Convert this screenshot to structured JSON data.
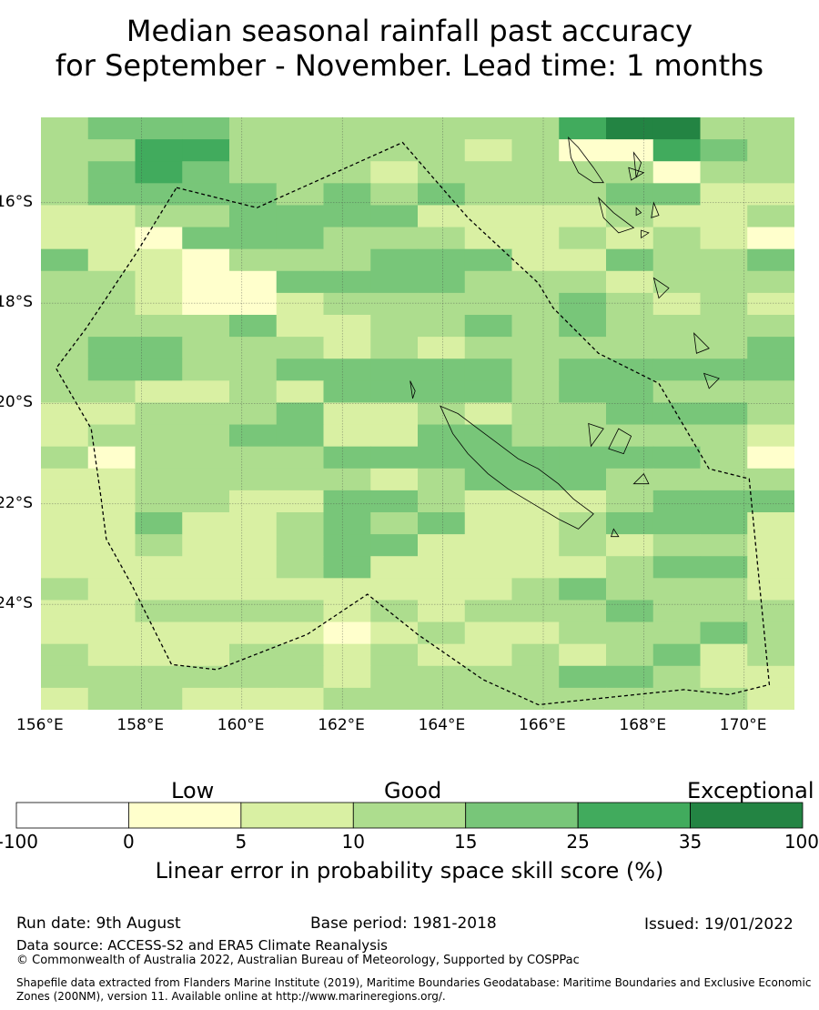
{
  "title_line1": "Median seasonal rainfall past accuracy",
  "title_line2": "for September - November. Lead time: 1 months",
  "map": {
    "lon_range": [
      156,
      171
    ],
    "lat_range": [
      -14.3,
      -26.1
    ],
    "lon_ticks": [
      156,
      158,
      160,
      162,
      164,
      166,
      168,
      170
    ],
    "lon_tick_labels": [
      "156°E",
      "158°E",
      "160°E",
      "162°E",
      "164°E",
      "166°E",
      "168°E",
      "170°E"
    ],
    "lat_ticks": [
      -16,
      -18,
      -20,
      -22,
      -24
    ],
    "lat_tick_labels": [
      "16°S",
      "18°S",
      "20°S",
      "22°S",
      "24°S"
    ],
    "grid": true,
    "skill_grid_class_rows": [
      "3444333333356633",
      "3355333332311543",
      "3454333233333133",
      "3444434343334422",
      "2233444422223223",
      "2214443332232321",
      "4221333444224334",
      "3321144443332333",
      "3321123333343232",
      "3333422334343333",
      "3443332323333334",
      "3443344444344444",
      "3322324444344333",
      "2233342232334443",
      "2333442244333332",
      "3133334444444431",
      "2233333234443333",
      "2233224432223444",
      "2242234342234442",
      "2232234422232332",
      "2222234222223442",
      "3222222222343332",
      "2233332323334333",
      "2222221232233343",
      "3222332322323423",
      "3333332333344322",
      "2332223333333332"
    ],
    "boundary_zone": [
      [
        158.7,
        -15.7
      ],
      [
        160.3,
        -16.1
      ],
      [
        163.2,
        -14.8
      ],
      [
        164.5,
        -16.3
      ],
      [
        165.9,
        -17.6
      ],
      [
        166.2,
        -18.1
      ],
      [
        167.1,
        -19.0
      ],
      [
        168.3,
        -19.6
      ],
      [
        169.3,
        -21.3
      ],
      [
        170.1,
        -21.5
      ],
      [
        170.5,
        -25.6
      ],
      [
        169.7,
        -25.8
      ],
      [
        168.8,
        -25.7
      ],
      [
        165.9,
        -26.0
      ],
      [
        164.8,
        -25.5
      ],
      [
        163.5,
        -24.6
      ],
      [
        162.5,
        -23.8
      ],
      [
        161.3,
        -24.6
      ],
      [
        159.5,
        -25.3
      ],
      [
        158.6,
        -25.2
      ],
      [
        157.8,
        -23.6
      ],
      [
        157.3,
        -22.7
      ],
      [
        157.2,
        -21.9
      ],
      [
        157.0,
        -20.5
      ],
      [
        156.3,
        -19.3
      ],
      [
        156.9,
        -18.5
      ],
      [
        157.9,
        -17.0
      ],
      [
        158.7,
        -15.7
      ]
    ],
    "coastlines": [
      [
        [
          163.95,
          -20.05
        ],
        [
          164.3,
          -20.2
        ],
        [
          164.7,
          -20.5
        ],
        [
          165.1,
          -20.8
        ],
        [
          165.5,
          -21.1
        ],
        [
          165.9,
          -21.3
        ],
        [
          166.3,
          -21.6
        ],
        [
          166.6,
          -21.9
        ],
        [
          167.0,
          -22.2
        ],
        [
          166.7,
          -22.5
        ],
        [
          166.3,
          -22.3
        ],
        [
          165.8,
          -22.0
        ],
        [
          165.3,
          -21.7
        ],
        [
          164.9,
          -21.4
        ],
        [
          164.5,
          -21.0
        ],
        [
          164.2,
          -20.6
        ],
        [
          163.95,
          -20.05
        ]
      ],
      [
        [
          163.35,
          -19.55
        ],
        [
          163.45,
          -19.75
        ],
        [
          163.4,
          -19.9
        ],
        [
          163.35,
          -19.55
        ]
      ],
      [
        [
          167.5,
          -20.5
        ],
        [
          167.75,
          -20.65
        ],
        [
          167.6,
          -21.0
        ],
        [
          167.3,
          -20.9
        ],
        [
          167.5,
          -20.5
        ]
      ],
      [
        [
          166.9,
          -20.4
        ],
        [
          167.2,
          -20.5
        ],
        [
          166.95,
          -20.85
        ],
        [
          166.9,
          -20.4
        ]
      ],
      [
        [
          168.0,
          -21.4
        ],
        [
          168.1,
          -21.6
        ],
        [
          167.8,
          -21.6
        ],
        [
          168.0,
          -21.4
        ]
      ],
      [
        [
          167.4,
          -22.5
        ],
        [
          167.5,
          -22.65
        ],
        [
          167.35,
          -22.65
        ],
        [
          167.4,
          -22.5
        ]
      ],
      [
        [
          166.5,
          -14.7
        ],
        [
          166.7,
          -14.9
        ],
        [
          167.0,
          -15.3
        ],
        [
          167.2,
          -15.6
        ],
        [
          167.0,
          -15.6
        ],
        [
          166.7,
          -15.4
        ],
        [
          166.55,
          -15.1
        ],
        [
          166.5,
          -14.7
        ]
      ],
      [
        [
          167.8,
          -15.0
        ],
        [
          167.95,
          -15.2
        ],
        [
          167.85,
          -15.5
        ],
        [
          167.8,
          -15.0
        ]
      ],
      [
        [
          167.1,
          -15.9
        ],
        [
          167.4,
          -16.2
        ],
        [
          167.8,
          -16.5
        ],
        [
          167.5,
          -16.6
        ],
        [
          167.2,
          -16.3
        ],
        [
          167.1,
          -15.9
        ]
      ],
      [
        [
          168.2,
          -16.0
        ],
        [
          168.3,
          -16.25
        ],
        [
          168.15,
          -16.3
        ],
        [
          168.2,
          -16.0
        ]
      ],
      [
        [
          168.2,
          -17.5
        ],
        [
          168.5,
          -17.7
        ],
        [
          168.3,
          -17.9
        ],
        [
          168.2,
          -17.5
        ]
      ],
      [
        [
          169.0,
          -18.6
        ],
        [
          169.3,
          -18.9
        ],
        [
          169.05,
          -19.0
        ],
        [
          169.0,
          -18.6
        ]
      ],
      [
        [
          169.2,
          -19.4
        ],
        [
          169.5,
          -19.5
        ],
        [
          169.3,
          -19.7
        ],
        [
          169.2,
          -19.4
        ]
      ],
      [
        [
          167.7,
          -15.3
        ],
        [
          168.0,
          -15.4
        ],
        [
          167.75,
          -15.55
        ],
        [
          167.7,
          -15.3
        ]
      ],
      [
        [
          167.85,
          -16.1
        ],
        [
          167.95,
          -16.2
        ],
        [
          167.85,
          -16.25
        ],
        [
          167.85,
          -16.1
        ]
      ],
      [
        [
          167.95,
          -16.55
        ],
        [
          168.1,
          -16.6
        ],
        [
          167.95,
          -16.7
        ],
        [
          167.95,
          -16.55
        ]
      ]
    ]
  },
  "legend": {
    "category_labels": [
      "Low",
      "Good",
      "Exceptional"
    ],
    "bounds": [
      "-100",
      "0",
      "5",
      "10",
      "15",
      "25",
      "35",
      "100"
    ],
    "colors": [
      "#ffffff",
      "#ffffcc",
      "#d9f0a3",
      "#addd8e",
      "#78c679",
      "#41ab5d",
      "#238443"
    ],
    "title": "Linear error in probability space skill score (%)"
  },
  "footer": {
    "run_date": "Run date: 9th August",
    "base_period": "Base period: 1981-2018",
    "issued": "Issued: 19/01/2022",
    "data_source": "Data source: ACCESS-S2 and ERA5 Climate Reanalysis",
    "copyright": "© Commonwealth of Australia 2022, Australian Bureau of Meteorology, Supported by COSPPac",
    "shapefile": "Shapefile data extracted from Flanders Marine Institute (2019), Maritime Boundaries Geodatabase: Maritime Boundaries and Exclusive Economic Zones (200NM), version 11. Available online at http://www.marineregions.org/."
  }
}
